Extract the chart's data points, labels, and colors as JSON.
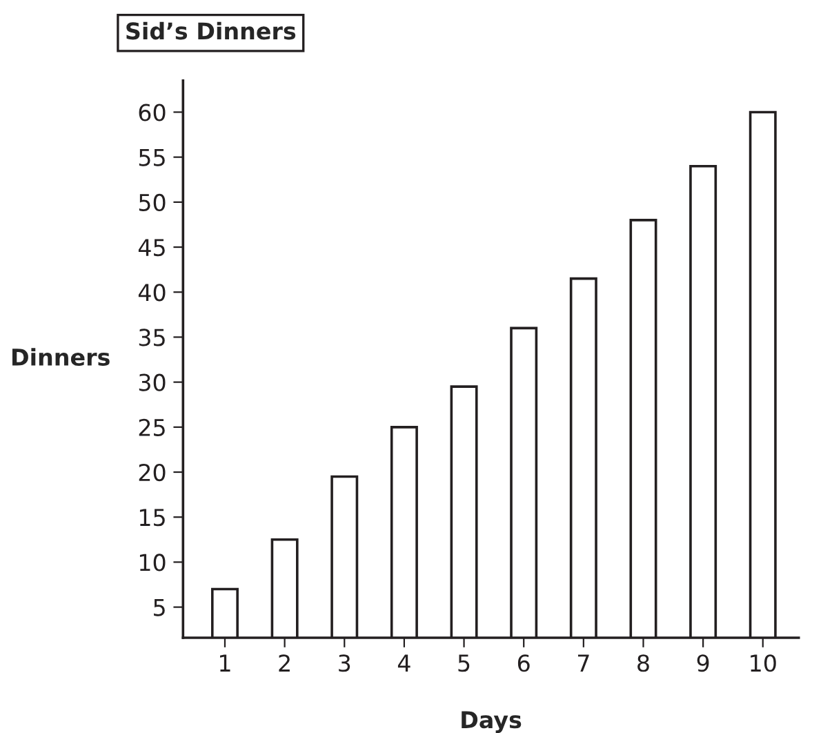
{
  "chart_data": {
    "type": "bar",
    "title": "Sid’s Dinners",
    "xlabel": "Days",
    "ylabel": "Dinners",
    "categories": [
      "1",
      "2",
      "3",
      "4",
      "5",
      "6",
      "7",
      "8",
      "9",
      "10"
    ],
    "values": [
      7,
      12.5,
      19.5,
      25,
      29.5,
      36,
      41.5,
      48,
      54,
      60
    ],
    "color": "#ffffff",
    "ylim": [
      1.6,
      63.5
    ],
    "yticks": [
      5,
      10,
      15,
      20,
      25,
      30,
      35,
      40,
      45,
      50,
      55,
      60
    ],
    "grid": false
  }
}
